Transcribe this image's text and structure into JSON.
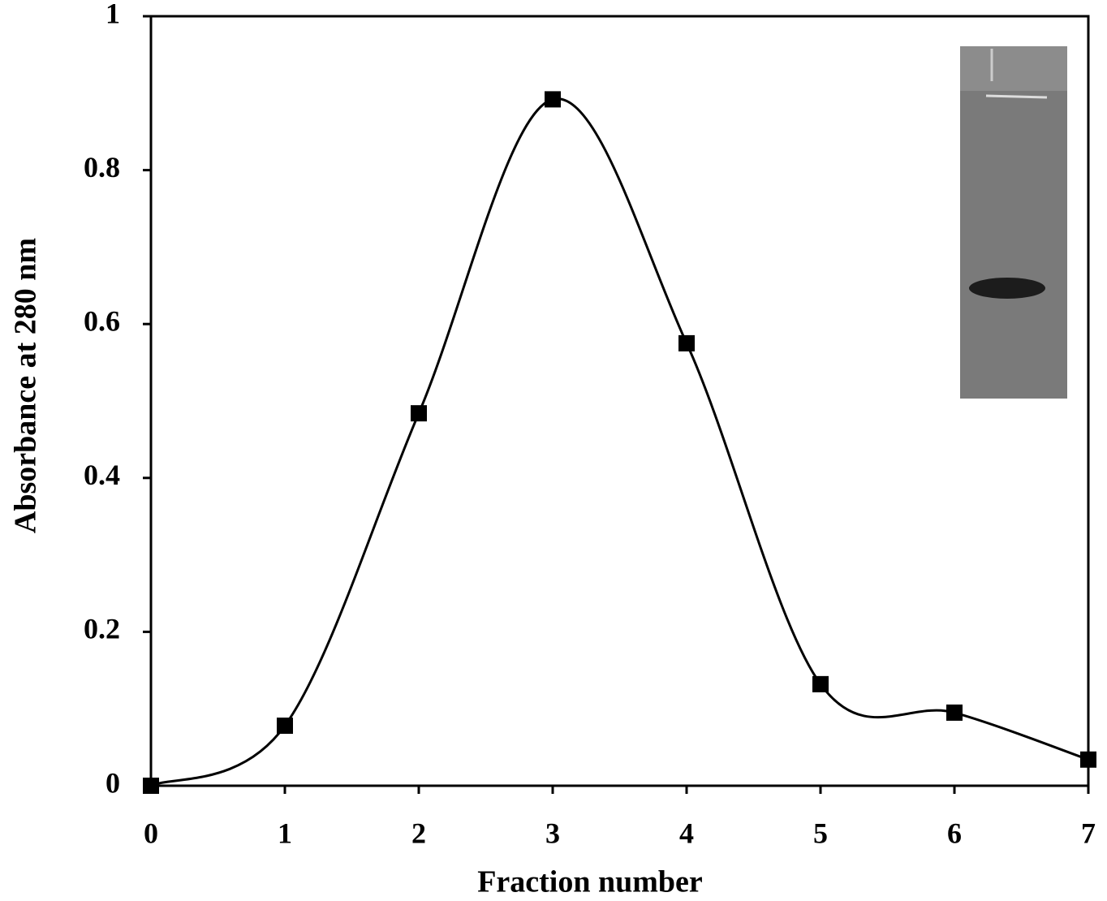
{
  "chart_data": {
    "type": "line",
    "x_label": "Fraction number",
    "y_label": "Absorbance at 280 nm",
    "x": [
      0,
      1,
      2,
      3,
      4,
      5,
      6,
      7
    ],
    "values": [
      0,
      0.078,
      0.484,
      0.892,
      0.575,
      0.132,
      0.095,
      0.034
    ],
    "color": "#000000",
    "xlim": [
      0,
      7
    ],
    "xticks": [
      0,
      1,
      2,
      3,
      4,
      5,
      6,
      7
    ],
    "ylim": [
      0,
      1
    ],
    "yticks": [
      0,
      0.2,
      0.4,
      0.6,
      0.8,
      1
    ],
    "smooth": true,
    "marker": "square",
    "grid": false
  }
}
